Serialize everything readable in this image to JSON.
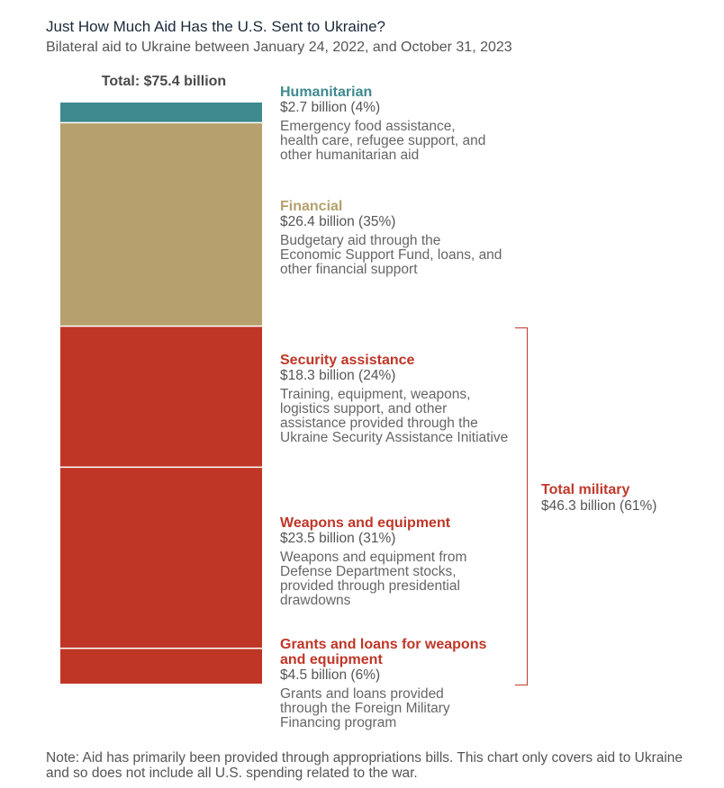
{
  "chart_data": {
    "type": "bar",
    "stacked": true,
    "title": "Just How Much Aid Has the U.S. Sent to Ukraine?",
    "subtitle": "Bilateral aid to Ukraine between January 24, 2022, and October 31, 2023",
    "total_label": "Total: $75.4 billion",
    "total_value": 75.4,
    "unit": "billion USD",
    "segments": [
      {
        "name": "Humanitarian",
        "value": 2.7,
        "amount": "$2.7 billion (4%)",
        "desc": "Emergency food assistance, health care, refugee support, and other humanitarian aid",
        "color": "#3e8a8f"
      },
      {
        "name": "Financial",
        "value": 26.4,
        "amount": "$26.4 billion (35%)",
        "desc": "Budgetary aid through the Economic Support Fund, loans, and other financial support",
        "color": "#b5a06e"
      },
      {
        "name": "Security assistance",
        "value": 18.3,
        "amount": "$18.3 billion (24%)",
        "desc": "Training, equipment, weapons, logistics support, and other assistance provided through the Ukraine Security Assistance Initiative",
        "color": "#bf3627"
      },
      {
        "name": "Weapons and equipment",
        "value": 23.5,
        "amount": "$23.5 billion (31%)",
        "desc": "Weapons and equipment from Defense Department stocks, provided through presidential drawdowns",
        "color": "#bf3627"
      },
      {
        "name": "Grants and loans for weapons and equipment",
        "value": 4.5,
        "amount": "$4.5 billion (6%)",
        "desc": "Grants and loans provided through the Foreign Military Financing program",
        "color": "#bf3627"
      }
    ],
    "group": {
      "name": "Total military",
      "amount": "$46.3 billion (61%)",
      "color": "#c0392b"
    },
    "note": "Note: Aid has primarily been provided through appropriations bills. This chart only covers aid to Ukraine and so does not include all U.S. spending related to the war."
  }
}
